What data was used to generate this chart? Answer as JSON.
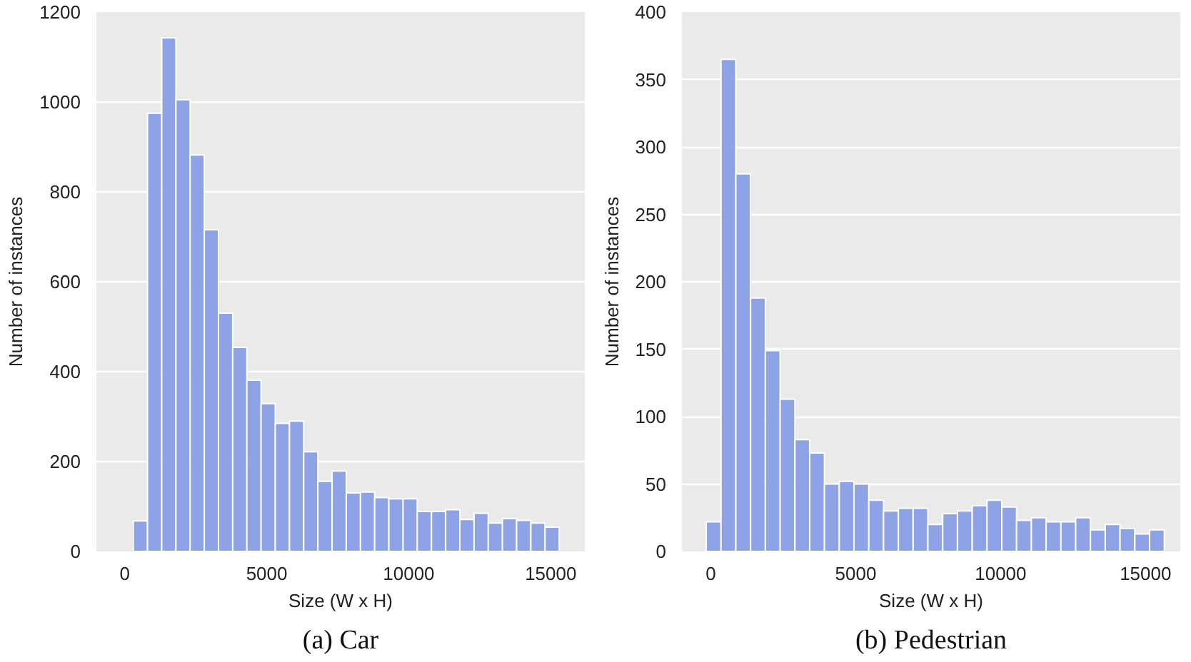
{
  "chart_data": [
    {
      "type": "histogram",
      "title": "(a) Car",
      "xlabel": "Size (W x H)",
      "ylabel": "Number of instances",
      "color": "#889fe6",
      "bins": [
        300,
        800,
        1300,
        1800,
        2300,
        2800,
        3300,
        3800,
        4300,
        4800,
        5300,
        5800,
        6300,
        6800,
        7300,
        7800,
        8300,
        8800,
        9300,
        9800,
        10300,
        10800,
        11300,
        11800,
        12300,
        12800,
        13300,
        13800,
        14300,
        14800,
        15300
      ],
      "values": [
        68,
        975,
        1143,
        1005,
        882,
        716,
        530,
        454,
        381,
        329,
        285,
        290,
        222,
        156,
        179,
        130,
        132,
        120,
        117,
        117,
        89,
        89,
        93,
        71,
        85,
        63,
        73,
        69,
        63,
        54
      ],
      "xlim": [
        -1000,
        16200
      ],
      "xticks": [
        0,
        5000,
        10000,
        15000
      ],
      "ylim": [
        0,
        1200
      ],
      "yticks": [
        0,
        200,
        400,
        600,
        800,
        1000,
        1200
      ],
      "grid": "y"
    },
    {
      "type": "histogram",
      "title": "(b) Pedestrian",
      "xlabel": "Size (W x H)",
      "ylabel": "Number of instances",
      "color": "#889fe6",
      "bins": [
        -160,
        350,
        860,
        1370,
        1880,
        2390,
        2900,
        3410,
        3920,
        4430,
        4940,
        5450,
        5960,
        6470,
        6980,
        7490,
        8000,
        8510,
        9020,
        9530,
        10040,
        10550,
        11060,
        11570,
        12080,
        12590,
        13100,
        13610,
        14120,
        14630,
        15140,
        15650
      ],
      "values": [
        22,
        365,
        280,
        188,
        149,
        113,
        83,
        73,
        50,
        52,
        50,
        38,
        30,
        32,
        32,
        20,
        28,
        30,
        34,
        38,
        33,
        23,
        25,
        22,
        22,
        25,
        16,
        20,
        17,
        13,
        16
      ],
      "xlim": [
        -1000,
        16200
      ],
      "xticks": [
        0,
        5000,
        10000,
        15000
      ],
      "ylim": [
        0,
        400
      ],
      "yticks": [
        0,
        50,
        100,
        150,
        200,
        250,
        300,
        350,
        400
      ],
      "grid": "y"
    }
  ]
}
